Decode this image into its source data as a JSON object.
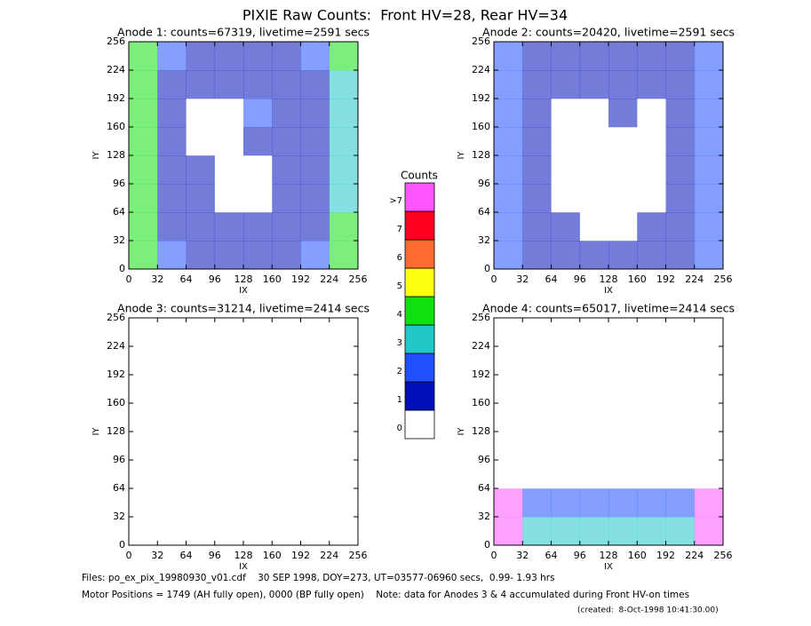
{
  "title": "PIXIE Raw Counts:  Front HV=28, Rear HV=34",
  "colorbar": {
    "title": "Counts",
    "labels": [
      "0",
      "1",
      "2",
      "3",
      "4",
      "5",
      "6",
      "7",
      ">7"
    ],
    "colors": [
      "#ffffff",
      "#0010b8",
      "#2050ff",
      "#20c8c8",
      "#10e010",
      "#ffff10",
      "#ff6a30",
      "#ff0022",
      "#ff55ff"
    ]
  },
  "chart_data": [
    {
      "type": "heatmap",
      "title": "Anode 1: counts=67319, livetime=2591 secs",
      "xlabel": "IX",
      "ylabel": "IY",
      "xlim": [
        0,
        256
      ],
      "ylim": [
        0,
        256
      ],
      "xticks": [
        0,
        32,
        64,
        96,
        128,
        160,
        192,
        224,
        256
      ],
      "yticks": [
        0,
        32,
        64,
        96,
        128,
        160,
        192,
        224,
        256
      ],
      "values": [
        [
          4,
          2,
          1,
          1,
          1,
          1,
          2,
          4
        ],
        [
          4,
          1,
          1,
          1,
          1,
          1,
          1,
          4
        ],
        [
          4,
          1,
          1,
          0,
          0,
          1,
          1,
          3
        ],
        [
          4,
          1,
          1,
          0,
          0,
          1,
          1,
          3
        ],
        [
          4,
          1,
          0,
          0,
          1,
          1,
          1,
          3
        ],
        [
          4,
          1,
          0,
          0,
          2,
          1,
          1,
          3
        ],
        [
          4,
          1,
          1,
          1,
          1,
          1,
          1,
          3
        ],
        [
          4,
          2,
          1,
          1,
          1,
          1,
          2,
          4
        ]
      ]
    },
    {
      "type": "heatmap",
      "title": "Anode 2: counts=20420, livetime=2591 secs",
      "xlabel": "IX",
      "ylabel": "IY",
      "xlim": [
        0,
        256
      ],
      "ylim": [
        0,
        256
      ],
      "xticks": [
        0,
        32,
        64,
        96,
        128,
        160,
        192,
        224,
        256
      ],
      "yticks": [
        0,
        32,
        64,
        96,
        128,
        160,
        192,
        224,
        256
      ],
      "values": [
        [
          2,
          1,
          1,
          1,
          1,
          1,
          1,
          2
        ],
        [
          2,
          1,
          1,
          0,
          0,
          1,
          1,
          2
        ],
        [
          2,
          1,
          0,
          0,
          0,
          0,
          1,
          2
        ],
        [
          2,
          1,
          0,
          0,
          0,
          0,
          1,
          2
        ],
        [
          2,
          1,
          0,
          0,
          0,
          0,
          1,
          2
        ],
        [
          2,
          1,
          0,
          0,
          1,
          0,
          1,
          2
        ],
        [
          2,
          1,
          1,
          1,
          1,
          1,
          1,
          2
        ],
        [
          2,
          1,
          1,
          1,
          1,
          1,
          1,
          2
        ]
      ]
    },
    {
      "type": "heatmap",
      "title": "Anode 3: counts=31214, livetime=2414 secs",
      "xlabel": "IX",
      "ylabel": "IY",
      "xlim": [
        0,
        256
      ],
      "ylim": [
        0,
        256
      ],
      "xticks": [
        0,
        32,
        64,
        96,
        128,
        160,
        192,
        224,
        256
      ],
      "yticks": [
        0,
        32,
        64,
        96,
        128,
        160,
        192,
        224,
        256
      ],
      "values": [
        [
          0,
          0,
          0,
          0,
          0,
          0,
          0,
          0
        ],
        [
          0,
          0,
          0,
          0,
          0,
          0,
          0,
          0
        ],
        [
          0,
          0,
          0,
          0,
          0,
          0,
          0,
          0
        ],
        [
          0,
          0,
          0,
          0,
          0,
          0,
          0,
          0
        ],
        [
          0,
          0,
          0,
          0,
          0,
          0,
          0,
          0
        ],
        [
          0,
          0,
          0,
          0,
          0,
          0,
          0,
          0
        ],
        [
          0,
          0,
          0,
          0,
          0,
          0,
          0,
          0
        ],
        [
          0,
          0,
          0,
          0,
          0,
          0,
          0,
          0
        ]
      ]
    },
    {
      "type": "heatmap",
      "title": "Anode 4: counts=65017, livetime=2414 secs",
      "xlabel": "IX",
      "ylabel": "IY",
      "xlim": [
        0,
        256
      ],
      "ylim": [
        0,
        256
      ],
      "xticks": [
        0,
        32,
        64,
        96,
        128,
        160,
        192,
        224,
        256
      ],
      "yticks": [
        0,
        32,
        64,
        96,
        128,
        160,
        192,
        224,
        256
      ],
      "values": [
        [
          8,
          3,
          3,
          3,
          3,
          3,
          3,
          8
        ],
        [
          8,
          2,
          2,
          2,
          2,
          2,
          2,
          8
        ],
        [
          0,
          0,
          0,
          0,
          0,
          0,
          0,
          0
        ],
        [
          0,
          0,
          0,
          0,
          0,
          0,
          0,
          0
        ],
        [
          0,
          0,
          0,
          0,
          0,
          0,
          0,
          0
        ],
        [
          0,
          0,
          0,
          0,
          0,
          0,
          0,
          0
        ],
        [
          0,
          0,
          0,
          0,
          0,
          0,
          0,
          0
        ],
        [
          0,
          0,
          0,
          0,
          0,
          0,
          0,
          0
        ]
      ]
    }
  ],
  "footer": [
    "Files: po_ex_pix_19980930_v01.cdf    30 SEP 1998, DOY=273, UT=03577-06960 secs,  0.99- 1.93 hrs",
    "Motor Positions = 1749 (AH fully open), 0000 (BP fully open)    Note: data for Anodes 3 & 4 accumulated during Front HV-on times",
    "(created:  8-Oct-1998 10:41:30.00)"
  ]
}
